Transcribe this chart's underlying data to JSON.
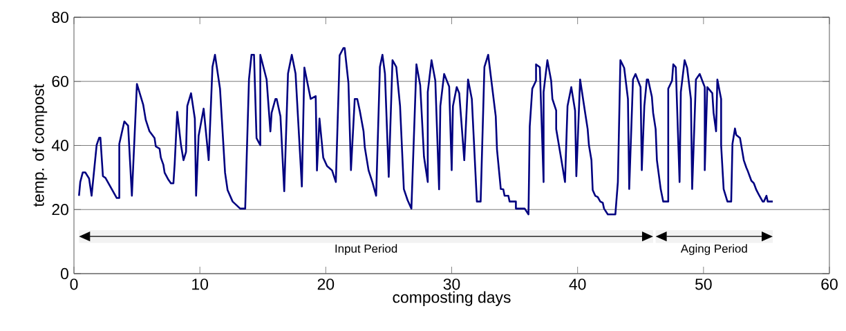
{
  "chart_data": {
    "type": "line",
    "xlabel": "composting days",
    "ylabel": "temp. of compost",
    "xlim": [
      0,
      60
    ],
    "ylim": [
      0,
      80
    ],
    "xticks": [
      0,
      10,
      20,
      30,
      40,
      50,
      60
    ],
    "yticks": [
      0,
      20,
      40,
      60,
      80
    ],
    "grid": "y",
    "marker": "none",
    "line_style": "solid",
    "x": [
      0.4,
      0.5,
      0.7,
      0.9,
      1.2,
      1.4,
      1.8,
      2.0,
      2.1,
      2.3,
      2.5,
      3.4,
      3.6,
      3.6,
      4.0,
      4.2,
      4.3,
      4.6,
      5.0,
      5.5,
      5.7,
      6.0,
      6.4,
      6.5,
      6.8,
      6.9,
      7.1,
      7.2,
      7.5,
      7.7,
      7.9,
      8.0,
      8.2,
      8.5,
      8.7,
      8.9,
      9.0,
      9.3,
      9.6,
      9.7,
      9.9,
      10.3,
      10.7,
      11.0,
      11.2,
      11.6,
      12.0,
      12.2,
      12.6,
      13.2,
      13.6,
      13.9,
      14.1,
      14.3,
      14.5,
      14.8,
      14.8,
      15.3,
      15.6,
      15.7,
      16.0,
      16.1,
      16.4,
      16.7,
      17.0,
      17.3,
      17.6,
      18.1,
      18.3,
      18.8,
      19.2,
      19.3,
      19.5,
      19.8,
      20.1,
      20.5,
      20.8,
      21.1,
      21.4,
      21.5,
      21.8,
      22.0,
      22.3,
      22.5,
      22.7,
      23.0,
      23.1,
      23.4,
      23.7,
      24.0,
      24.3,
      24.5,
      24.7,
      25.0,
      25.3,
      25.6,
      25.9,
      26.2,
      26.5,
      26.8,
      27.2,
      27.5,
      27.8,
      28.1,
      28.1,
      28.4,
      28.7,
      29.0,
      29.1,
      29.4,
      29.8,
      30.0,
      30.1,
      30.4,
      30.6,
      31.0,
      31.3,
      31.6,
      32.0,
      32.3,
      32.6,
      32.9,
      33.5,
      33.6,
      33.9,
      34.1,
      34.2,
      34.5,
      34.6,
      35.1,
      35.1,
      35.8,
      36.1,
      36.2,
      36.4,
      36.7,
      36.7,
      37.0,
      37.3,
      37.3,
      37.6,
      37.9,
      38.0,
      38.3,
      38.3,
      38.7,
      39.0,
      39.2,
      39.5,
      39.8,
      39.9,
      40.2,
      40.6,
      40.8,
      40.9,
      41.1,
      41.2,
      41.4,
      41.6,
      41.8,
      42.0,
      42.1,
      42.4,
      43.0,
      43.2,
      43.4,
      43.7,
      44.0,
      44.1,
      44.4,
      44.6,
      45.0,
      45.1,
      45.3,
      45.5,
      45.6,
      45.9,
      46.0,
      46.2,
      46.3,
      46.6,
      46.8,
      47.2,
      47.2,
      47.5,
      47.6,
      47.8,
      48.1,
      48.2,
      48.5,
      48.7,
      49.0,
      49.1,
      49.4,
      49.7,
      50.1,
      50.1,
      50.3,
      50.7,
      50.8,
      51.0,
      51.1,
      51.4,
      51.4,
      51.6,
      51.9,
      52.2,
      52.3,
      52.5,
      52.6,
      52.9,
      53.2,
      53.4,
      53.5,
      53.8,
      54.0,
      54.2,
      54.4,
      54.7,
      54.8,
      55.0,
      55.1,
      55.5
    ],
    "series": [
      {
        "color": "#000080",
        "values": [
          24.3,
          28.6,
          31.6,
          31.6,
          29.7,
          24.3,
          40.1,
          42.4,
          42.4,
          30.4,
          29.9,
          23.6,
          23.6,
          40.5,
          47.5,
          46.6,
          46.2,
          24.3,
          59.2,
          52.7,
          48.0,
          44.4,
          42.3,
          39.7,
          39.0,
          36.2,
          34.0,
          31.5,
          29.3,
          28.2,
          28.2,
          34.3,
          50.5,
          40.1,
          35.4,
          38.0,
          52.3,
          56.3,
          48.4,
          24.3,
          43.0,
          51.5,
          35.4,
          64.5,
          68.3,
          57.7,
          31.5,
          26.1,
          22.5,
          20.3,
          20.3,
          60.6,
          68.3,
          68.3,
          42.3,
          40.1,
          68.3,
          60.6,
          44.4,
          50.2,
          54.5,
          54.5,
          49.1,
          25.7,
          62.4,
          68.3,
          62.4,
          27.2,
          64.3,
          54.5,
          55.4,
          32.2,
          48.4,
          36.2,
          33.6,
          32.2,
          28.6,
          68.1,
          70.4,
          70.4,
          59.5,
          32.3,
          54.5,
          54.5,
          50.9,
          44.4,
          39.4,
          32.2,
          28.6,
          24.3,
          64.5,
          68.3,
          62.4,
          30.2,
          66.6,
          64.5,
          52.3,
          26.4,
          22.9,
          20.3,
          65.3,
          58.8,
          36.5,
          28.6,
          56.7,
          66.6,
          60.2,
          26.3,
          52.3,
          62.3,
          58.4,
          32.3,
          52.3,
          58.2,
          56.3,
          35.4,
          60.6,
          54.5,
          22.5,
          22.5,
          64.5,
          68.3,
          49.1,
          38.7,
          26.4,
          26.3,
          24.3,
          24.3,
          22.5,
          22.5,
          20.3,
          20.3,
          18.5,
          45.9,
          57.7,
          60.2,
          65.3,
          64.4,
          28.6,
          56.7,
          66.6,
          60.2,
          54.5,
          50.9,
          45.1,
          35.8,
          28.6,
          52.3,
          58.2,
          50.9,
          30.4,
          60.6,
          50.2,
          45.1,
          40.1,
          35.4,
          26.1,
          24.3,
          23.9,
          22.5,
          22.1,
          20.3,
          18.5,
          18.5,
          28.6,
          66.6,
          64.2,
          54.5,
          26.4,
          60.6,
          62.3,
          58.2,
          32.3,
          52.3,
          60.6,
          60.6,
          55.2,
          50.2,
          45.1,
          35.4,
          26.4,
          22.5,
          22.5,
          57.7,
          60.2,
          65.3,
          64.4,
          28.6,
          56.7,
          66.6,
          64.2,
          54.5,
          26.4,
          60.6,
          62.3,
          58.2,
          32.3,
          58.2,
          56.3,
          50.2,
          44.4,
          60.6,
          54.5,
          40.1,
          26.4,
          22.5,
          22.5,
          40.5,
          45.3,
          43.3,
          42.3,
          35.4,
          33.1,
          32.2,
          29.0,
          28.2,
          26.1,
          24.6,
          22.5,
          22.5,
          24.3,
          22.5,
          22.5
        ]
      }
    ],
    "bands": [
      {
        "axis": "x",
        "from": 0.4,
        "to": 46.0,
        "label": "Input Period"
      },
      {
        "axis": "x",
        "from": 46.2,
        "to": 55.5,
        "label": "Aging Period"
      }
    ]
  }
}
